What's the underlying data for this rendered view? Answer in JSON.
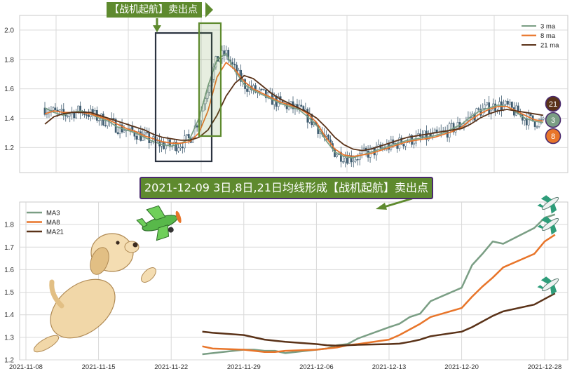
{
  "colors": {
    "ma3": "#7a9e84",
    "ma8": "#e8752a",
    "ma21": "#5a3218",
    "banner": "#5e8a2e",
    "candle": "#3d5a6e",
    "grid": "#d9d9d9",
    "rect_dark": "#2b3340",
    "rect_green": "#5e8a2e"
  },
  "annotations": {
    "top_banner": "【战机起航】卖出点",
    "mid_banner": "2021-12-09 3日,8日,21日均线形成【战机起航】卖出点",
    "badge_21": "21",
    "badge_3": "3",
    "badge_8": "8"
  },
  "chart_data": [
    {
      "type": "line",
      "panel": "top",
      "title": "",
      "xlabel": "",
      "ylabel": "",
      "ylim": [
        1.03,
        2.1
      ],
      "yticks": [
        "1.2",
        "1.4",
        "1.6",
        "1.8",
        "2.0"
      ],
      "grid": true,
      "legend": "top-right",
      "candles": "dense candlesticks behind the averages",
      "series": [
        {
          "name": "3 ma",
          "color_key": "ma3",
          "values": [
            1.47,
            1.44,
            1.42,
            1.44,
            1.45,
            1.43,
            1.4,
            1.38,
            1.34,
            1.32,
            1.3,
            1.27,
            1.24,
            1.22,
            1.21,
            1.23,
            1.26,
            1.4,
            1.62,
            1.8,
            1.84,
            1.72,
            1.63,
            1.59,
            1.56,
            1.53,
            1.5,
            1.48,
            1.46,
            1.41,
            1.35,
            1.25,
            1.17,
            1.14,
            1.13,
            1.15,
            1.17,
            1.19,
            1.21,
            1.23,
            1.25,
            1.26,
            1.27,
            1.28,
            1.3,
            1.33,
            1.36,
            1.41,
            1.45,
            1.47,
            1.49,
            1.48,
            1.44,
            1.4,
            1.38,
            1.37
          ]
        },
        {
          "name": "8 ma",
          "color_key": "ma8",
          "values": [
            1.43,
            1.45,
            1.44,
            1.44,
            1.44,
            1.43,
            1.41,
            1.39,
            1.36,
            1.33,
            1.31,
            1.28,
            1.26,
            1.24,
            1.23,
            1.23,
            1.24,
            1.3,
            1.45,
            1.68,
            1.78,
            1.73,
            1.65,
            1.6,
            1.57,
            1.54,
            1.51,
            1.49,
            1.47,
            1.43,
            1.37,
            1.27,
            1.19,
            1.15,
            1.14,
            1.15,
            1.16,
            1.18,
            1.2,
            1.22,
            1.24,
            1.25,
            1.26,
            1.27,
            1.29,
            1.31,
            1.34,
            1.39,
            1.43,
            1.46,
            1.48,
            1.48,
            1.45,
            1.42,
            1.39,
            1.38
          ]
        },
        {
          "name": "21 ma",
          "color_key": "ma21",
          "values": [
            1.36,
            1.41,
            1.43,
            1.44,
            1.44,
            1.44,
            1.42,
            1.4,
            1.38,
            1.36,
            1.34,
            1.32,
            1.29,
            1.27,
            1.26,
            1.25,
            1.25,
            1.27,
            1.32,
            1.42,
            1.55,
            1.64,
            1.69,
            1.67,
            1.62,
            1.57,
            1.53,
            1.5,
            1.47,
            1.44,
            1.4,
            1.34,
            1.27,
            1.22,
            1.19,
            1.18,
            1.19,
            1.21,
            1.23,
            1.25,
            1.27,
            1.28,
            1.29,
            1.3,
            1.31,
            1.32,
            1.33,
            1.36,
            1.4,
            1.43,
            1.45,
            1.46,
            1.45,
            1.44,
            1.43,
            1.42
          ]
        }
      ]
    },
    {
      "type": "line",
      "panel": "bottom",
      "title": "",
      "xlabel": "",
      "ylabel": "",
      "ylim": [
        1.2,
        1.9
      ],
      "yticks": [
        "1.2",
        "1.3",
        "1.4",
        "1.5",
        "1.6",
        "1.7",
        "1.8"
      ],
      "xticks": [
        "2021-11-08",
        "2021-11-15",
        "2021-11-22",
        "2021-11-29",
        "2021-12-06",
        "2021-12-13",
        "2021-12-20",
        "2021-12-28"
      ],
      "grid": true,
      "legend": "top-left",
      "series": [
        {
          "name": "MA3",
          "color_key": "ma3",
          "x": [
            "2021-11-25",
            "2021-11-26",
            "2021-11-29",
            "2021-11-30",
            "2021-12-01",
            "2021-12-02",
            "2021-12-03",
            "2021-12-06",
            "2021-12-07",
            "2021-12-08",
            "2021-12-09",
            "2021-12-10",
            "2021-12-13",
            "2021-12-14",
            "2021-12-15",
            "2021-12-16",
            "2021-12-17",
            "2021-12-20",
            "2021-12-21",
            "2021-12-22",
            "2021-12-23",
            "2021-12-24",
            "2021-12-27",
            "2021-12-28",
            "2021-12-29"
          ],
          "values": [
            1.225,
            1.23,
            1.245,
            1.245,
            1.24,
            1.24,
            1.23,
            1.245,
            1.25,
            1.265,
            1.27,
            1.295,
            1.345,
            1.36,
            1.39,
            1.405,
            1.46,
            1.52,
            1.62,
            1.67,
            1.725,
            1.715,
            1.785,
            1.83,
            1.845
          ]
        },
        {
          "name": "MA8",
          "color_key": "ma8",
          "x": [
            "2021-11-25",
            "2021-11-26",
            "2021-11-29",
            "2021-11-30",
            "2021-12-01",
            "2021-12-02",
            "2021-12-03",
            "2021-12-06",
            "2021-12-07",
            "2021-12-08",
            "2021-12-09",
            "2021-12-10",
            "2021-12-13",
            "2021-12-14",
            "2021-12-15",
            "2021-12-16",
            "2021-12-17",
            "2021-12-20",
            "2021-12-21",
            "2021-12-22",
            "2021-12-23",
            "2021-12-24",
            "2021-12-27",
            "2021-12-28",
            "2021-12-29"
          ],
          "values": [
            1.26,
            1.25,
            1.245,
            1.24,
            1.235,
            1.235,
            1.24,
            1.245,
            1.25,
            1.255,
            1.265,
            1.27,
            1.29,
            1.31,
            1.335,
            1.36,
            1.39,
            1.43,
            1.48,
            1.525,
            1.565,
            1.61,
            1.67,
            1.725,
            1.755
          ]
        },
        {
          "name": "MA21",
          "color_key": "ma21",
          "x": [
            "2021-11-25",
            "2021-11-26",
            "2021-11-29",
            "2021-11-30",
            "2021-12-01",
            "2021-12-02",
            "2021-12-03",
            "2021-12-06",
            "2021-12-07",
            "2021-12-08",
            "2021-12-09",
            "2021-12-10",
            "2021-12-13",
            "2021-12-14",
            "2021-12-15",
            "2021-12-16",
            "2021-12-17",
            "2021-12-20",
            "2021-12-21",
            "2021-12-22",
            "2021-12-23",
            "2021-12-24",
            "2021-12-27",
            "2021-12-28",
            "2021-12-29"
          ],
          "values": [
            1.325,
            1.32,
            1.31,
            1.3,
            1.29,
            1.285,
            1.28,
            1.27,
            1.265,
            1.263,
            1.265,
            1.267,
            1.27,
            1.272,
            1.28,
            1.29,
            1.305,
            1.325,
            1.345,
            1.37,
            1.395,
            1.415,
            1.445,
            1.47,
            1.495
          ]
        }
      ]
    }
  ]
}
